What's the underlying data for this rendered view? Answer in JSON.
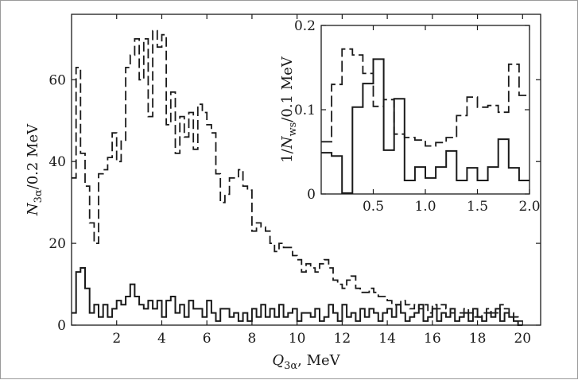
{
  "chart_data": [
    {
      "type": "histogram",
      "xlabel": "Q3α, MeV",
      "ylabel": "N3α/0.2 MeV",
      "xlim": [
        0,
        20.8
      ],
      "ylim": [
        0,
        76
      ],
      "xticks": [
        2,
        4,
        6,
        8,
        10,
        12,
        14,
        16,
        18,
        20
      ],
      "yticks": [
        0,
        20,
        40,
        60
      ],
      "bin_width": 0.2,
      "series": [
        {
          "style": "dashed",
          "x_start": 0,
          "values": [
            36,
            63,
            42,
            34,
            25,
            20,
            37,
            38,
            41,
            47,
            40,
            45,
            63,
            66,
            70,
            60,
            70,
            51,
            72,
            68,
            71,
            49,
            57,
            42,
            51,
            46,
            52,
            43,
            54,
            52,
            49,
            47,
            37,
            30,
            32,
            36,
            36,
            38,
            34,
            33,
            23,
            25,
            24,
            23,
            20,
            18,
            20,
            19,
            19,
            17,
            16,
            13,
            15,
            14,
            13,
            15,
            16,
            14,
            11,
            10,
            9,
            11,
            12,
            9,
            8,
            8,
            9,
            8,
            7,
            7,
            6,
            5,
            5,
            6,
            5,
            4,
            5,
            4,
            5,
            3,
            5,
            4,
            5,
            4,
            3,
            3,
            3,
            4,
            3,
            2,
            2,
            3,
            4,
            3,
            3,
            5,
            4,
            3,
            2,
            1
          ]
        },
        {
          "style": "solid",
          "x_start": 0,
          "values": [
            3,
            13,
            14,
            9,
            3,
            5,
            2,
            5,
            2,
            4,
            6,
            5,
            7,
            10,
            7,
            5,
            4,
            6,
            4,
            6,
            2,
            6,
            7,
            3,
            5,
            2,
            6,
            4,
            4,
            2,
            6,
            3,
            1,
            4,
            4,
            2,
            3,
            1,
            3,
            1,
            4,
            2,
            5,
            2,
            4,
            2,
            5,
            2,
            3,
            4,
            1,
            3,
            3,
            2,
            4,
            1,
            2,
            5,
            3,
            1,
            5,
            2,
            3,
            1,
            4,
            2,
            4,
            3,
            1,
            3,
            4,
            2,
            5,
            3,
            1,
            2,
            3,
            5,
            1,
            2,
            4,
            1,
            3,
            2,
            4,
            1,
            2,
            3,
            1,
            4,
            2,
            1,
            3,
            2,
            4,
            1,
            3,
            2,
            1,
            0
          ]
        }
      ]
    },
    {
      "type": "histogram",
      "xlabel": "",
      "ylabel": "1/Nws/0.1 MeV",
      "xlim": [
        0,
        2.0
      ],
      "ylim": [
        0,
        0.2
      ],
      "xticks": [
        "0.5",
        "1.0",
        "1.5",
        "2.0"
      ],
      "yticks": [
        "0",
        "0.1",
        "0.2"
      ],
      "bin_width": 0.1,
      "series": [
        {
          "style": "dashed",
          "x_start": 0,
          "values": [
            0.062,
            0.13,
            0.172,
            0.165,
            0.143,
            0.104,
            0.112,
            0.071,
            0.067,
            0.064,
            0.057,
            0.061,
            0.067,
            0.093,
            0.115,
            0.103,
            0.105,
            0.097,
            0.154,
            0.117
          ]
        },
        {
          "style": "solid",
          "x_start": 0,
          "values": [
            0.049,
            0.045,
            0.001,
            0.103,
            0.131,
            0.16,
            0.052,
            0.113,
            0.016,
            0.032,
            0.019,
            0.032,
            0.051,
            0.016,
            0.031,
            0.016,
            0.032,
            0.065,
            0.031,
            0.016
          ]
        }
      ]
    }
  ]
}
